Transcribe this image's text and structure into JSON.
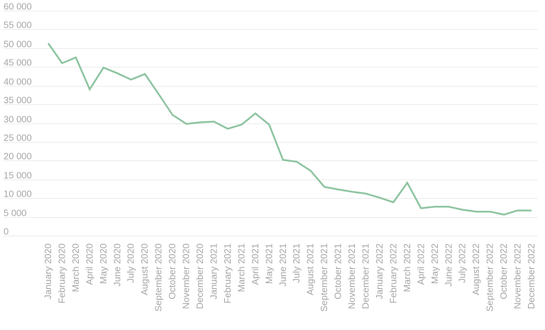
{
  "chart_data": {
    "type": "line",
    "title": "",
    "xlabel": "",
    "ylabel": "",
    "ylim": [
      0,
      60000
    ],
    "grid": true,
    "y_ticks": [
      0,
      5000,
      10000,
      15000,
      20000,
      25000,
      30000,
      35000,
      40000,
      45000,
      50000,
      55000,
      60000
    ],
    "y_tick_labels": [
      "0",
      "5 000",
      "10 000",
      "15 000",
      "20 000",
      "25 000",
      "30 000",
      "35 000",
      "40 000",
      "45 000",
      "50 000",
      "55 000",
      "60 000"
    ],
    "line_color": "#8dc4a0",
    "categories": [
      "January 2020",
      "February 2020",
      "March 2020",
      "April 2020",
      "May 2020",
      "June 2020",
      "July 2020",
      "August 2020",
      "September 2020",
      "October 2020",
      "November 2020",
      "December 2020",
      "January 2021",
      "February 2021",
      "March 2021",
      "April 2021",
      "May 2021",
      "June 2021",
      "July 2021",
      "August 2021",
      "September 2021",
      "October 2021",
      "November 2021",
      "December 2021",
      "January 2022",
      "February 2022",
      "March 2022",
      "April 2022",
      "May 2022",
      "June 2022",
      "July 2022",
      "August 2022",
      "September 2022",
      "October 2022",
      "November 2022",
      "December 2022"
    ],
    "series": [
      {
        "values": [
          51300,
          46000,
          47500,
          39000,
          44800,
          43300,
          41600,
          43100,
          37700,
          32200,
          29800,
          30200,
          30400,
          28500,
          29600,
          32600,
          29600,
          20200,
          19700,
          17300,
          13000,
          12300,
          11700,
          11200,
          10100,
          8900,
          14100,
          7300,
          7700,
          7700,
          6900,
          6400,
          6400,
          5600,
          6700,
          6700
        ]
      }
    ]
  }
}
